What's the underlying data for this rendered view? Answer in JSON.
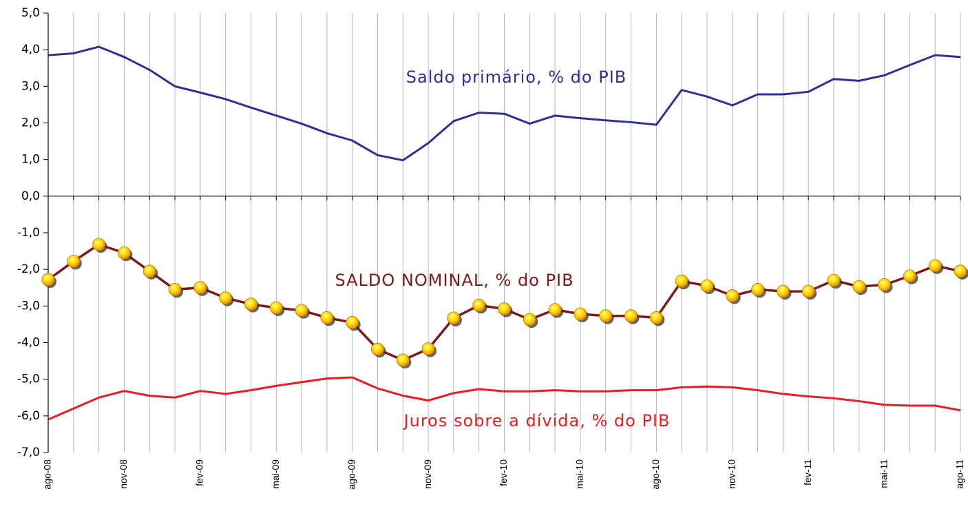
{
  "chart_data": {
    "type": "line",
    "categories": [
      "ago-08",
      null,
      null,
      "nov-08",
      null,
      null,
      "fev-09",
      null,
      null,
      "mai-09",
      null,
      null,
      "ago-09",
      null,
      null,
      "nov-09",
      null,
      null,
      "fev-10",
      null,
      null,
      "mai-10",
      null,
      null,
      "ago-10",
      null,
      null,
      "nov-10",
      null,
      null,
      "fev-11",
      null,
      null,
      "mai-11",
      null,
      null,
      "ago-11"
    ],
    "series": [
      {
        "name": "Saldo primário, % do PIB",
        "color": "#2e3192",
        "markers": false,
        "values": [
          3.85,
          3.9,
          4.08,
          3.8,
          3.45,
          3.0,
          2.83,
          2.65,
          2.42,
          2.2,
          1.98,
          1.72,
          1.52,
          1.12,
          0.98,
          1.45,
          2.05,
          2.28,
          2.25,
          1.98,
          2.2,
          2.13,
          2.07,
          2.02,
          1.95,
          2.9,
          2.72,
          2.48,
          2.78,
          2.78,
          2.85,
          3.2,
          3.15,
          3.3,
          3.58,
          3.85,
          3.8
        ]
      },
      {
        "name": "SALDO NOMINAL, % do PIB",
        "color": "#7b1a1a",
        "markers": true,
        "values": [
          -2.28,
          -1.78,
          -1.32,
          -1.55,
          -2.05,
          -2.55,
          -2.5,
          -2.78,
          -2.95,
          -3.05,
          -3.12,
          -3.32,
          -3.45,
          -4.18,
          -4.48,
          -4.17,
          -3.33,
          -2.98,
          -3.08,
          -3.37,
          -3.1,
          -3.22,
          -3.27,
          -3.27,
          -3.32,
          -2.32,
          -2.45,
          -2.72,
          -2.55,
          -2.6,
          -2.6,
          -2.3,
          -2.47,
          -2.42,
          -2.18,
          -1.9,
          -2.05
        ]
      },
      {
        "name": "Juros sobre a dívida, % do PIB",
        "color": "#ed1c24",
        "markers": false,
        "values": [
          -6.1,
          -5.8,
          -5.5,
          -5.32,
          -5.45,
          -5.5,
          -5.32,
          -5.4,
          -5.3,
          -5.18,
          -5.08,
          -4.98,
          -4.95,
          -5.25,
          -5.45,
          -5.58,
          -5.38,
          -5.27,
          -5.33,
          -5.33,
          -5.3,
          -5.33,
          -5.33,
          -5.3,
          -5.3,
          -5.22,
          -5.2,
          -5.22,
          -5.3,
          -5.4,
          -5.47,
          -5.52,
          -5.6,
          -5.7,
          -5.72,
          -5.72,
          -5.85
        ]
      }
    ],
    "ylim": [
      -7,
      5
    ],
    "yticks": [
      {
        "value": -7,
        "label": "-7,0"
      },
      {
        "value": -6,
        "label": "-6,0"
      },
      {
        "value": -5,
        "label": "-5,0"
      },
      {
        "value": -4,
        "label": "-4,0"
      },
      {
        "value": -3,
        "label": "-3,0"
      },
      {
        "value": -2,
        "label": "-2,0"
      },
      {
        "value": -1,
        "label": "-1,0"
      },
      {
        "value": 0,
        "label": "0,0"
      },
      {
        "value": 1,
        "label": "1,0"
      },
      {
        "value": 2,
        "label": "2,0"
      },
      {
        "value": 3,
        "label": "3,0"
      },
      {
        "value": 4,
        "label": "4,0"
      },
      {
        "value": 5,
        "label": "5,0"
      }
    ],
    "grid": true
  }
}
